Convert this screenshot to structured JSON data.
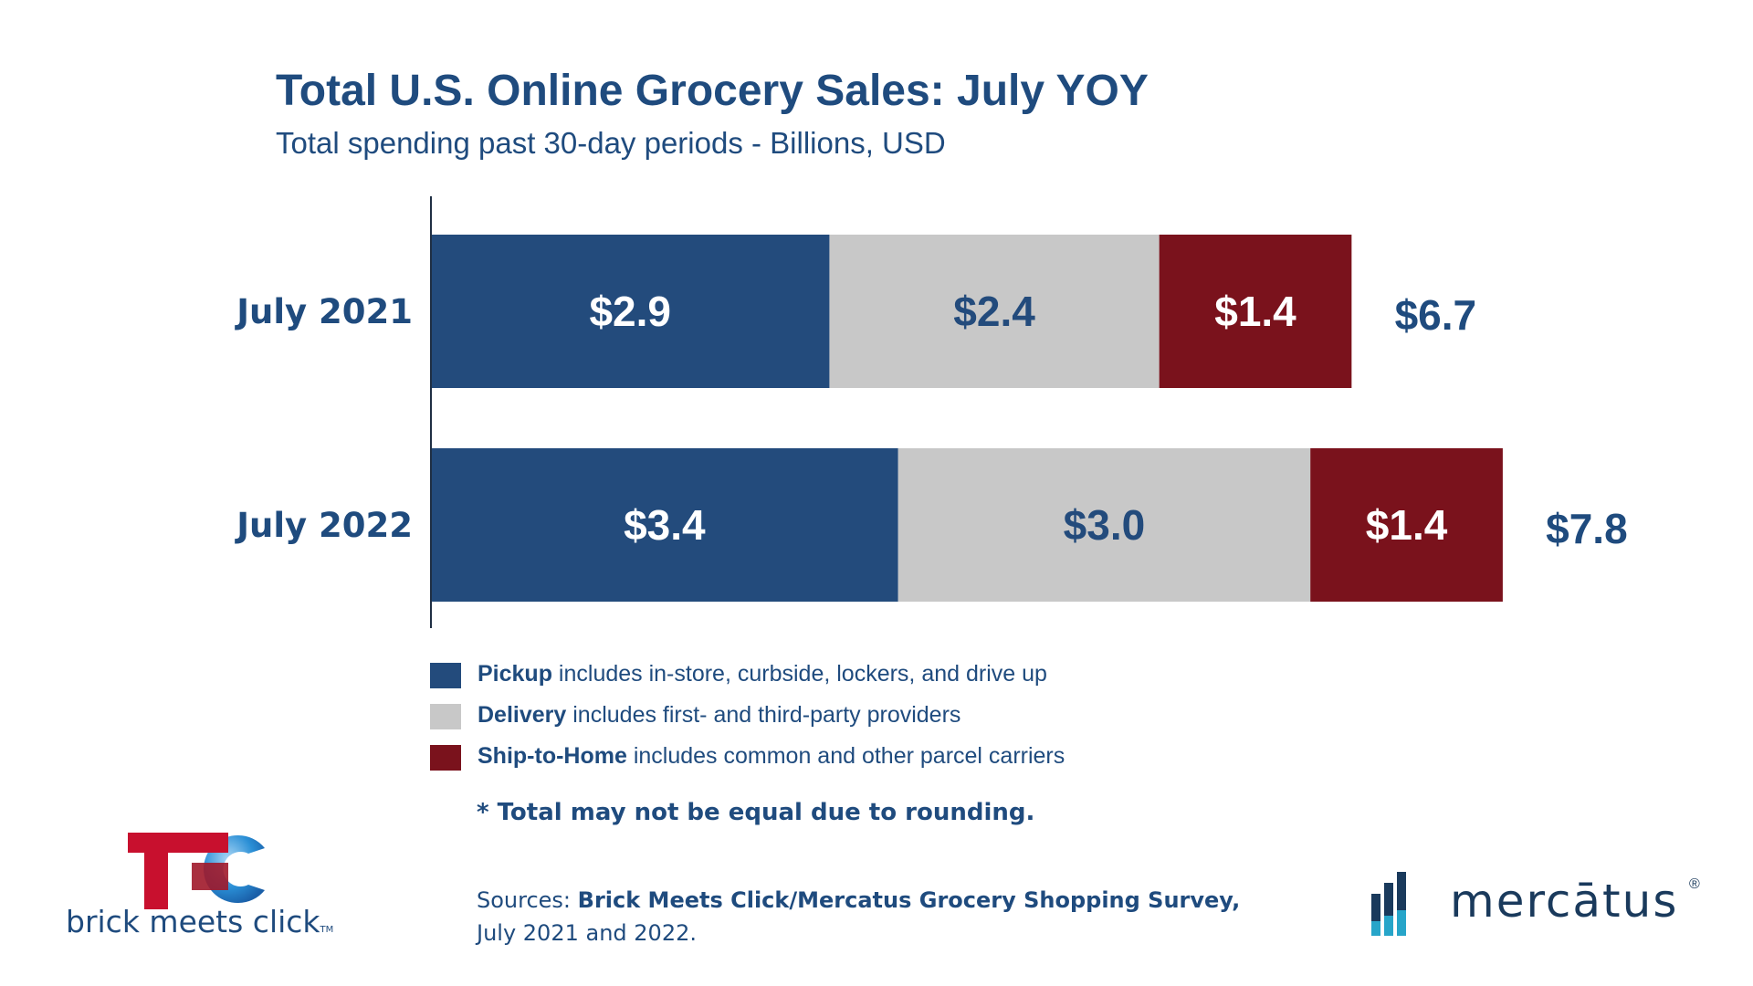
{
  "chart_data": {
    "type": "bar",
    "orientation": "horizontal",
    "stacked": true,
    "title": "Total U.S. Online Grocery Sales: July YOY",
    "subtitle": "Total spending past 30-day periods - Billions, USD",
    "categories": [
      "July 2021",
      "July 2022"
    ],
    "series": [
      {
        "name": "Pickup",
        "values": [
          2.9,
          3.4
        ],
        "labels": [
          "$2.9",
          "$3.4"
        ],
        "color": "#234b7c",
        "label_color": "#ffffff"
      },
      {
        "name": "Delivery",
        "values": [
          2.4,
          3.0
        ],
        "labels": [
          "$2.4",
          "$3.0"
        ],
        "color": "#c8c8c8",
        "label_color": "#234b7c"
      },
      {
        "name": "Ship-to-Home",
        "values": [
          1.4,
          1.4
        ],
        "labels": [
          "$1.4",
          "$1.4"
        ],
        "color": "#7a121c",
        "label_color": "#ffffff"
      }
    ],
    "totals": [
      "$6.7",
      "$7.8"
    ],
    "xlim": [
      0,
      7.8
    ],
    "grid": false
  },
  "legend": [
    {
      "name": "Pickup",
      "desc": " includes in-store, curbside, lockers, and drive up",
      "color": "#234b7c"
    },
    {
      "name": "Delivery",
      "desc": " includes first- and third-party providers",
      "color": "#c8c8c8"
    },
    {
      "name": "Ship-to-Home",
      "desc": " includes common and other parcel carriers",
      "color": "#7a121c"
    }
  ],
  "note": "* Total may not be equal due to rounding.",
  "sources": {
    "prefix": "Sources: ",
    "bold": "Brick Meets Click/Mercatus Grocery Shopping Survey,",
    "line2": "July 2021 and 2022."
  },
  "logos": {
    "bmc": {
      "text": "brick meets click",
      "tm": "TM",
      "icon": "brick-meets-click-logo-icon"
    },
    "mercatus": {
      "text": "mercātus",
      "reg": "®",
      "icon": "mercatus-bars-icon"
    }
  },
  "colors": {
    "title": "#1f4b7e",
    "pickup": "#234b7c",
    "delivery": "#c8c8c8",
    "ship": "#7a121c"
  }
}
